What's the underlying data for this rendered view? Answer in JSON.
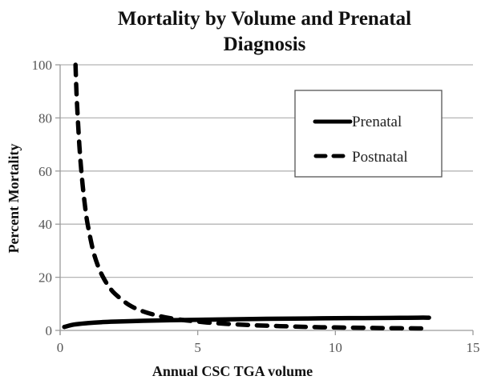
{
  "chart_data": {
    "type": "line",
    "title": [
      "Mortality by Volume and Prenatal",
      "Diagnosis"
    ],
    "xlabel": "Annual CSC TGA volume",
    "ylabel": "Percent Mortality",
    "xlim": [
      0,
      15
    ],
    "ylim": [
      0,
      100
    ],
    "xticks": [
      0,
      5,
      10,
      15
    ],
    "yticks": [
      0,
      20,
      40,
      60,
      80,
      100
    ],
    "grid": "horizontal",
    "legend_position": "top-right",
    "series": [
      {
        "name": "Prenatal",
        "style": "solid",
        "color": "#000000",
        "x": [
          0.15,
          0.5,
          1,
          1.5,
          2,
          3,
          4,
          5,
          6,
          7,
          8,
          9,
          10,
          11,
          12,
          13,
          13.4
        ],
        "y": [
          1.3,
          2.2,
          2.75,
          3.1,
          3.3,
          3.6,
          3.85,
          4.0,
          4.15,
          4.3,
          4.4,
          4.5,
          4.6,
          4.65,
          4.7,
          4.8,
          4.8
        ]
      },
      {
        "name": "Postnatal",
        "style": "dashed",
        "color": "#000000",
        "x": [
          0.56,
          0.6,
          0.7,
          0.8,
          0.9,
          1,
          1.2,
          1.4,
          1.6,
          1.8,
          2,
          2.5,
          3,
          3.5,
          4,
          5,
          6,
          7,
          8,
          9,
          10,
          11,
          12,
          13,
          13.4
        ],
        "y": [
          100,
          88.2,
          69.6,
          56.6,
          47.2,
          40.0,
          30.0,
          23.6,
          19.3,
          16.1,
          13.7,
          9.6,
          7.2,
          5.7,
          4.6,
          3.3,
          2.5,
          1.95,
          1.6,
          1.3,
          1.1,
          0.98,
          0.85,
          0.75,
          0.72
        ]
      }
    ]
  }
}
